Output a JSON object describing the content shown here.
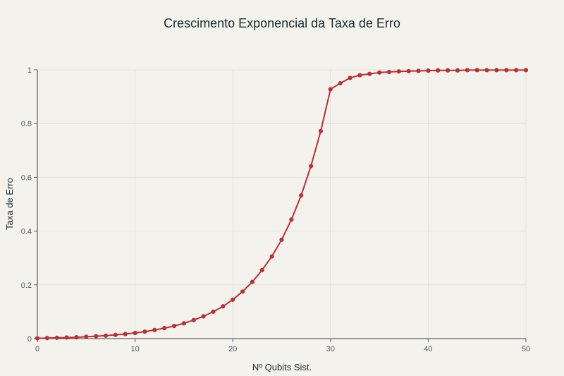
{
  "chart_data": {
    "type": "line",
    "title": "Crescimento Exponencial da Taxa de Erro",
    "xlabel": "Nº Qubits Sist.",
    "ylabel": "Taxa de Erro",
    "xlim": [
      0,
      50
    ],
    "ylim": [
      0,
      1
    ],
    "x_ticks": [
      0,
      10,
      20,
      30,
      40,
      50
    ],
    "y_ticks": [
      0,
      0.2,
      0.4,
      0.6,
      0.8,
      1
    ],
    "x_tick_labels": [
      "0",
      "10",
      "20",
      "30",
      "40",
      "50"
    ],
    "y_tick_labels": [
      "0",
      "0.2",
      "0.4",
      "0.6",
      "0.8",
      "1"
    ],
    "grid": true,
    "series_color": "#bd2f33",
    "series": [
      {
        "x": [
          0,
          1,
          2,
          3,
          4,
          5,
          6,
          7,
          8,
          9,
          10,
          11,
          12,
          13,
          14,
          15,
          16,
          17,
          18,
          19,
          20,
          21,
          22,
          23,
          24,
          25,
          26,
          27,
          28,
          29,
          30,
          31,
          32,
          33,
          34,
          35,
          36,
          37,
          38,
          39,
          40,
          41,
          42,
          43,
          44,
          45,
          46,
          47,
          48,
          49,
          50
        ],
        "values": [
          0.001,
          0.002,
          0.003,
          0.004,
          0.005,
          0.007,
          0.009,
          0.011,
          0.014,
          0.017,
          0.021,
          0.026,
          0.032,
          0.039,
          0.047,
          0.057,
          0.069,
          0.083,
          0.1,
          0.12,
          0.145,
          0.175,
          0.211,
          0.255,
          0.306,
          0.368,
          0.443,
          0.533,
          0.642,
          0.772,
          0.928,
          0.95,
          0.97,
          0.98,
          0.985,
          0.99,
          0.992,
          0.994,
          0.995,
          0.996,
          0.997,
          0.998,
          0.998,
          0.998,
          0.999,
          0.999,
          0.999,
          0.999,
          0.999,
          0.999,
          0.999
        ]
      }
    ]
  }
}
